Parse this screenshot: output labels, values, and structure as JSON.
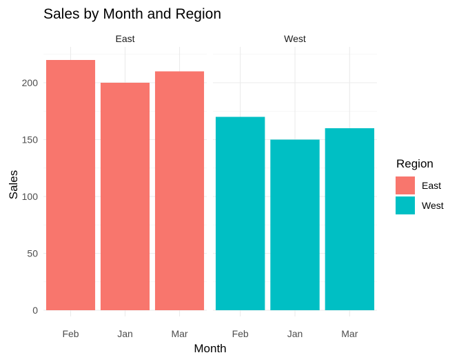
{
  "chart_data": {
    "type": "bar",
    "title": "Sales by Month and Region",
    "xlabel": "Month",
    "ylabel": "Sales",
    "categories": [
      "Feb",
      "Jan",
      "Mar"
    ],
    "facets": [
      "East",
      "West"
    ],
    "series": [
      {
        "name": "East",
        "color": "#F8766D",
        "values": [
          220,
          200,
          210
        ]
      },
      {
        "name": "West",
        "color": "#00BFC4",
        "values": [
          170,
          150,
          160
        ]
      }
    ],
    "ylim": [
      0,
      220
    ],
    "yticks": [
      0,
      50,
      100,
      150,
      200
    ],
    "grid": true,
    "legend": {
      "title": "Region",
      "position": "right"
    }
  }
}
